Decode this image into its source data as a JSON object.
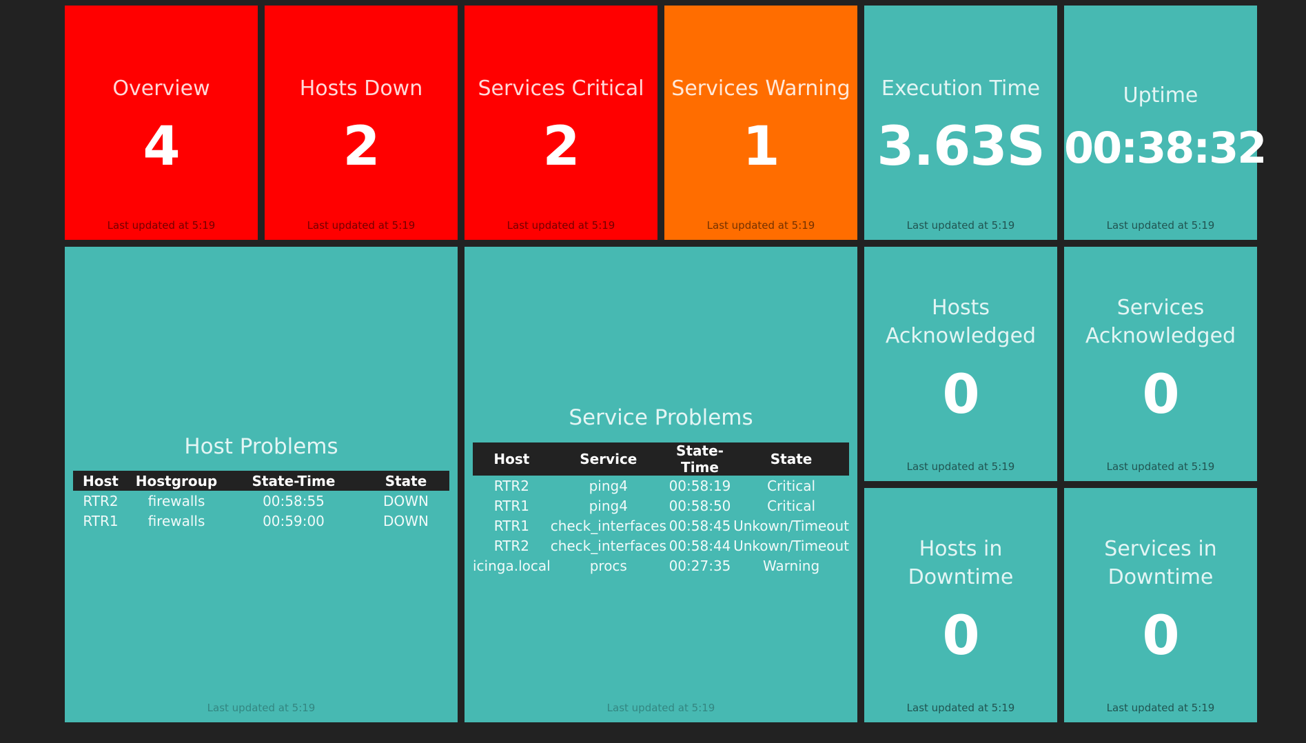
{
  "colors": {
    "background": "#222222",
    "critical": "#ff0000",
    "warning": "#ff6d00",
    "ok": "#47b9b2"
  },
  "tiles": {
    "overview": {
      "title": "Overview",
      "value": "4",
      "updated": "Last updated at 5:19"
    },
    "hosts_down": {
      "title": "Hosts Down",
      "value": "2",
      "updated": "Last updated at 5:19"
    },
    "services_critical": {
      "title": "Services Critical",
      "value": "2",
      "updated": "Last updated at 5:19"
    },
    "services_warning": {
      "title": "Services Warning",
      "value": "1",
      "updated": "Last updated at 5:19"
    },
    "execution_time": {
      "title": "Execution Time",
      "value": "3.63S",
      "updated": "Last updated at 5:19"
    },
    "uptime": {
      "title": "Uptime",
      "value": "00:38:32",
      "updated": "Last updated at 5:19"
    },
    "hosts_acknowledged": {
      "title_line1": "Hosts",
      "title_line2": "Acknowledged",
      "value": "0",
      "updated": "Last updated at 5:19"
    },
    "services_acknowledged": {
      "title_line1": "Services",
      "title_line2": "Acknowledged",
      "value": "0",
      "updated": "Last updated at 5:19"
    },
    "hosts_downtime": {
      "title_line1": "Hosts in",
      "title_line2": "Downtime",
      "value": "0",
      "updated": "Last updated at 5:19"
    },
    "services_downtime": {
      "title_line1": "Services in",
      "title_line2": "Downtime",
      "value": "0",
      "updated": "Last updated at 5:19"
    }
  },
  "host_problems": {
    "title": "Host Problems",
    "headers": [
      "Host",
      "Hostgroup",
      "State-Time",
      "State"
    ],
    "rows": [
      [
        "RTR2",
        "firewalls",
        "00:58:55",
        "DOWN"
      ],
      [
        "RTR1",
        "firewalls",
        "00:59:00",
        "DOWN"
      ]
    ],
    "updated": "Last updated at 5:19"
  },
  "service_problems": {
    "title": "Service Problems",
    "headers": [
      "Host",
      "Service",
      "State-Time",
      "State"
    ],
    "rows": [
      [
        "RTR2",
        "ping4",
        "00:58:19",
        "Critical"
      ],
      [
        "RTR1",
        "ping4",
        "00:58:50",
        "Critical"
      ],
      [
        "RTR1",
        "check_interfaces",
        "00:58:45",
        "Unkown/Timeout"
      ],
      [
        "RTR2",
        "check_interfaces",
        "00:58:44",
        "Unkown/Timeout"
      ],
      [
        "icinga.local",
        "procs",
        "00:27:35",
        "Warning"
      ]
    ],
    "updated": "Last updated at 5:19"
  }
}
